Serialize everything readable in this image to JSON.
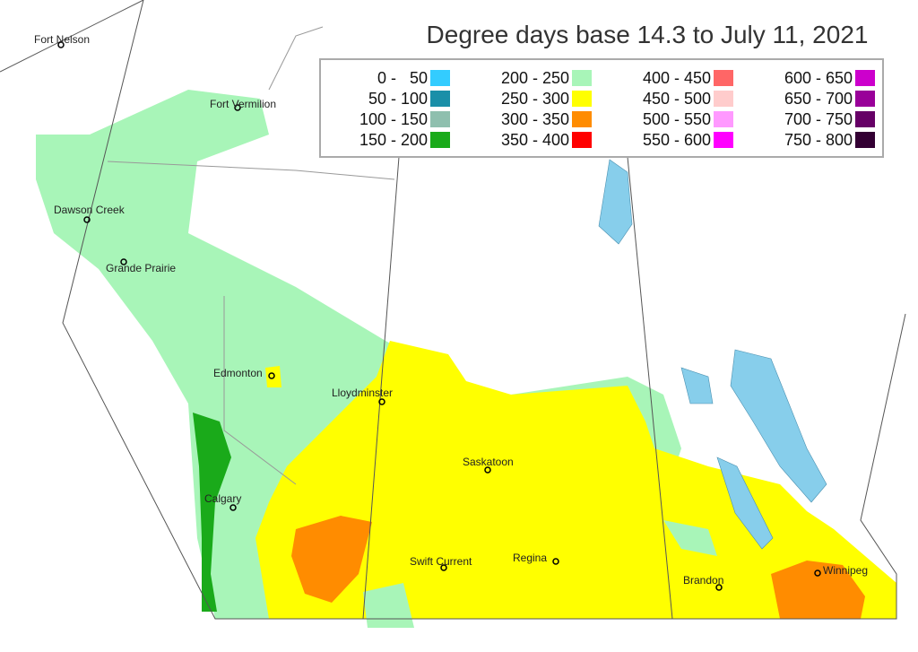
{
  "title": "Degree days base 14.3 to July 11, 2021",
  "legend": {
    "items": [
      {
        "range": "0 -   50",
        "color": "#33ccff"
      },
      {
        "range": "50 - 100",
        "color": "#1a8fa8"
      },
      {
        "range": "100 - 150",
        "color": "#8fbfae"
      },
      {
        "range": "150 - 200",
        "color": "#1aaa1a"
      },
      {
        "range": "200 - 250",
        "color": "#a8f5b8"
      },
      {
        "range": "250 - 300",
        "color": "#ffff00"
      },
      {
        "range": "300 - 350",
        "color": "#ff8c00"
      },
      {
        "range": "350 - 400",
        "color": "#ff0000"
      },
      {
        "range": "400 - 450",
        "color": "#ff6666"
      },
      {
        "range": "450 - 500",
        "color": "#ffcccc"
      },
      {
        "range": "500 - 550",
        "color": "#ff99ff"
      },
      {
        "range": "550 - 600",
        "color": "#ff00ff"
      },
      {
        "range": "600 - 650",
        "color": "#cc00cc"
      },
      {
        "range": "650 - 700",
        "color": "#990099"
      },
      {
        "range": "700 - 750",
        "color": "#660066"
      },
      {
        "range": "750 - 800",
        "color": "#330033"
      }
    ]
  },
  "cities": [
    "Fort Nelson",
    "Fort Vermilion",
    "Dawson Creek",
    "Grande Prairie",
    "Edmonton",
    "Lloydminster",
    "Saskatoon",
    "Calgary",
    "Swift Current",
    "Regina",
    "Brandon",
    "Winnipeg"
  ]
}
